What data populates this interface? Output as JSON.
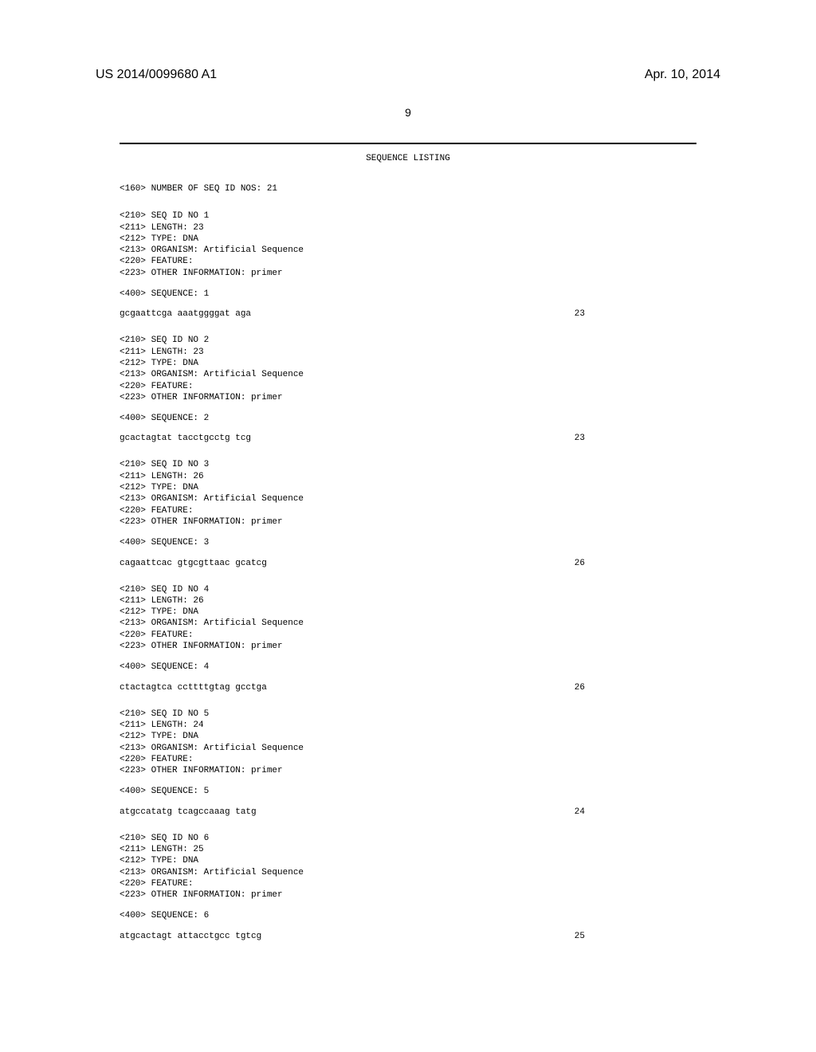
{
  "header": {
    "pub_number": "US 2014/0099680 A1",
    "pub_date": "Apr. 10, 2014",
    "page_number": "9"
  },
  "title": "SEQUENCE LISTING",
  "num_seq_line": "<160> NUMBER OF SEQ ID NOS: 21",
  "sequences": [
    {
      "meta": [
        "<210> SEQ ID NO 1",
        "<211> LENGTH: 23",
        "<212> TYPE: DNA",
        "<213> ORGANISM: Artificial Sequence",
        "<220> FEATURE:",
        "<223> OTHER INFORMATION: primer"
      ],
      "seq_label": "<400> SEQUENCE: 1",
      "sequence": "gcgaattcga aaatggggat aga",
      "length": "23"
    },
    {
      "meta": [
        "<210> SEQ ID NO 2",
        "<211> LENGTH: 23",
        "<212> TYPE: DNA",
        "<213> ORGANISM: Artificial Sequence",
        "<220> FEATURE:",
        "<223> OTHER INFORMATION: primer"
      ],
      "seq_label": "<400> SEQUENCE: 2",
      "sequence": "gcactagtat tacctgcctg tcg",
      "length": "23"
    },
    {
      "meta": [
        "<210> SEQ ID NO 3",
        "<211> LENGTH: 26",
        "<212> TYPE: DNA",
        "<213> ORGANISM: Artificial Sequence",
        "<220> FEATURE:",
        "<223> OTHER INFORMATION: primer"
      ],
      "seq_label": "<400> SEQUENCE: 3",
      "sequence": "cagaattcac gtgcgttaac gcatcg",
      "length": "26"
    },
    {
      "meta": [
        "<210> SEQ ID NO 4",
        "<211> LENGTH: 26",
        "<212> TYPE: DNA",
        "<213> ORGANISM: Artificial Sequence",
        "<220> FEATURE:",
        "<223> OTHER INFORMATION: primer"
      ],
      "seq_label": "<400> SEQUENCE: 4",
      "sequence": "ctactagtca ccttttgtag gcctga",
      "length": "26"
    },
    {
      "meta": [
        "<210> SEQ ID NO 5",
        "<211> LENGTH: 24",
        "<212> TYPE: DNA",
        "<213> ORGANISM: Artificial Sequence",
        "<220> FEATURE:",
        "<223> OTHER INFORMATION: primer"
      ],
      "seq_label": "<400> SEQUENCE: 5",
      "sequence": "atgccatatg tcagccaaag tatg",
      "length": "24"
    },
    {
      "meta": [
        "<210> SEQ ID NO 6",
        "<211> LENGTH: 25",
        "<212> TYPE: DNA",
        "<213> ORGANISM: Artificial Sequence",
        "<220> FEATURE:",
        "<223> OTHER INFORMATION: primer"
      ],
      "seq_label": "<400> SEQUENCE: 6",
      "sequence": "atgcactagt attacctgcc tgtcg",
      "length": "25"
    }
  ]
}
